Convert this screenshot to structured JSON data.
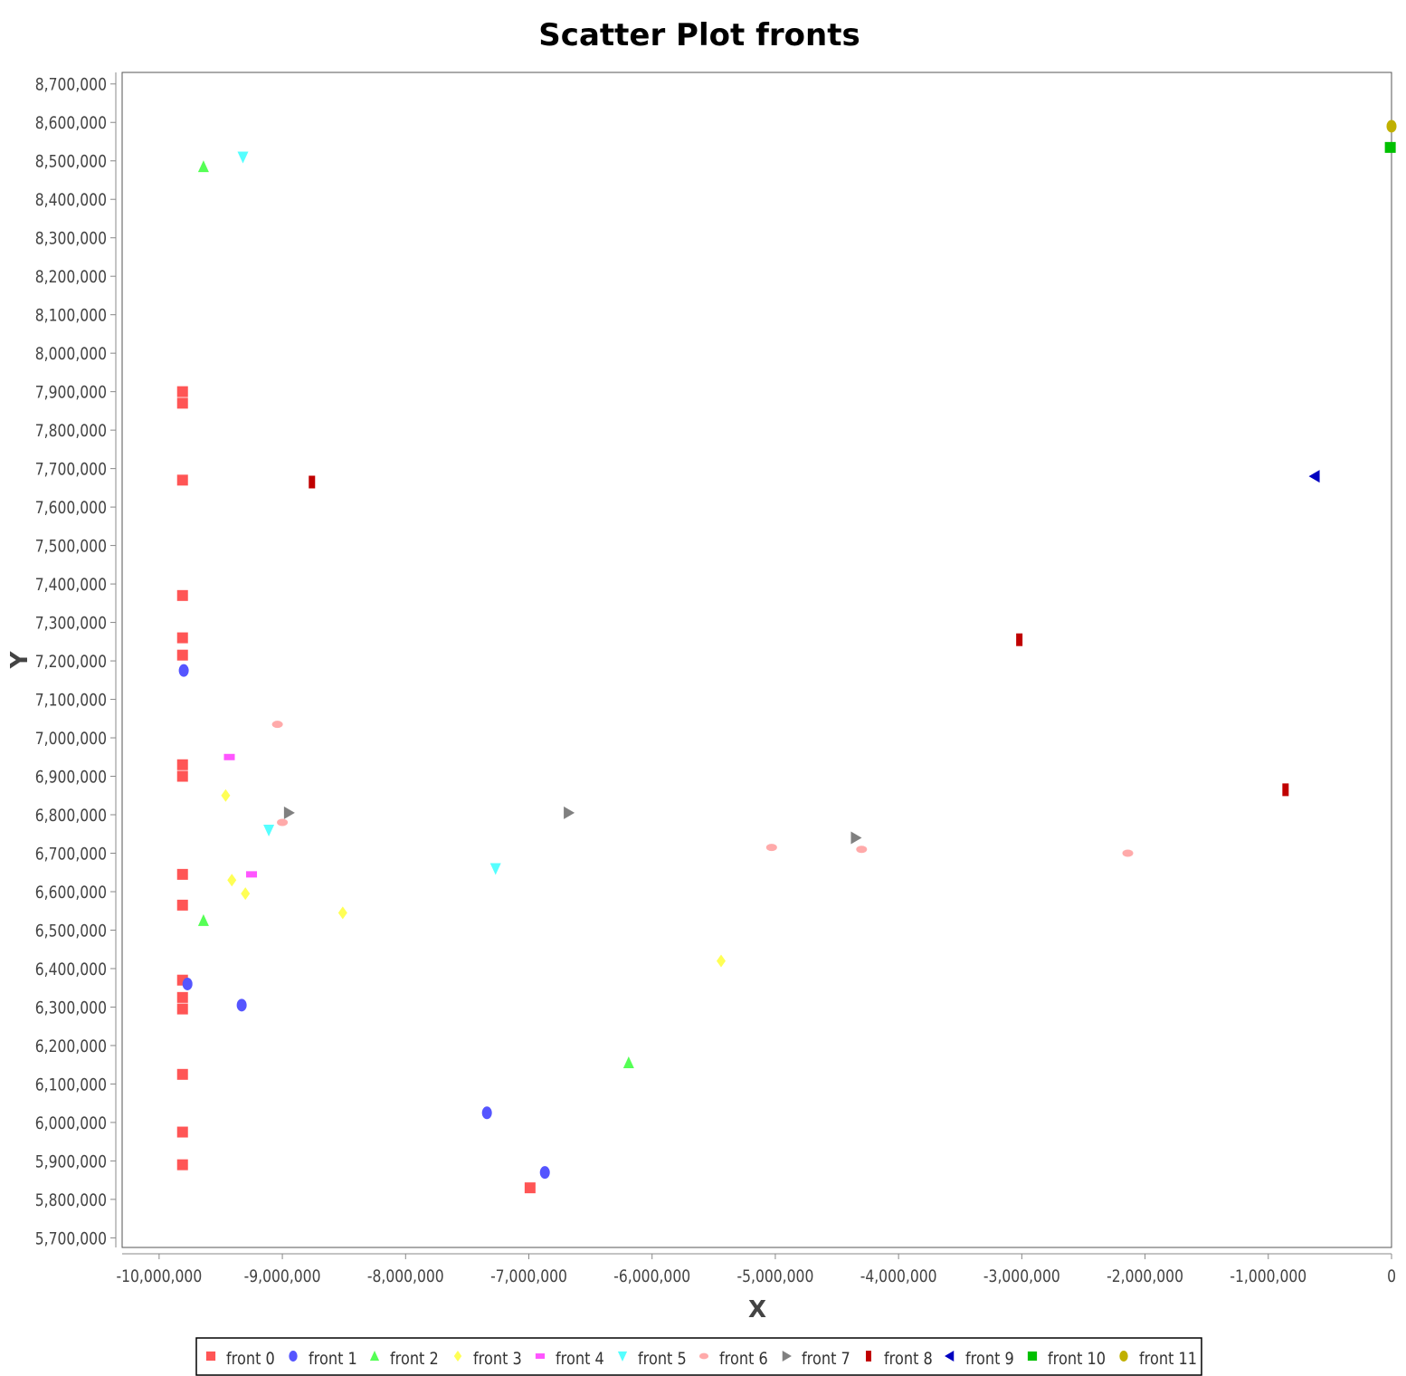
{
  "chart_data": {
    "type": "scatter",
    "title": "Scatter Plot fronts",
    "xlabel": "X",
    "ylabel": "Y",
    "xlim": [
      -10300000,
      0
    ],
    "ylim": [
      5675000,
      8730000
    ],
    "x_ticks": [
      -10000000,
      -9000000,
      -8000000,
      -7000000,
      -6000000,
      -5000000,
      -4000000,
      -3000000,
      -2000000,
      -1000000,
      0
    ],
    "x_tick_labels": [
      "-10,000,000",
      "-9,000,000",
      "-8,000,000",
      "-7,000,000",
      "-6,000,000",
      "-5,000,000",
      "-4,000,000",
      "-3,000,000",
      "-2,000,000",
      "-1,000,000",
      "0"
    ],
    "y_ticks": [
      5700000,
      5800000,
      5900000,
      6000000,
      6100000,
      6200000,
      6300000,
      6400000,
      6500000,
      6600000,
      6700000,
      6800000,
      6900000,
      7000000,
      7100000,
      7200000,
      7300000,
      7400000,
      7500000,
      7600000,
      7700000,
      7800000,
      7900000,
      8000000,
      8100000,
      8200000,
      8300000,
      8400000,
      8500000,
      8600000,
      8700000
    ],
    "y_tick_labels": [
      "5,700,000",
      "5,800,000",
      "5,900,000",
      "6,000,000",
      "6,100,000",
      "6,200,000",
      "6,300,000",
      "6,400,000",
      "6,500,000",
      "6,600,000",
      "6,700,000",
      "6,800,000",
      "6,900,000",
      "7,000,000",
      "7,100,000",
      "7,200,000",
      "7,300,000",
      "7,400,000",
      "7,500,000",
      "7,600,000",
      "7,700,000",
      "7,800,000",
      "7,900,000",
      "8,000,000",
      "8,100,000",
      "8,200,000",
      "8,300,000",
      "8,400,000",
      "8,500,000",
      "8,600,000",
      "8,700,000"
    ],
    "grid": false,
    "legend_position": "bottom",
    "series": [
      {
        "name": "front 0",
        "color": "#ff5555",
        "marker": "square",
        "points": [
          [
            -9810000,
            7900000
          ],
          [
            -9810000,
            7870000
          ],
          [
            -9810000,
            7670000
          ],
          [
            -9810000,
            7370000
          ],
          [
            -9810000,
            7260000
          ],
          [
            -9810000,
            7215000
          ],
          [
            -9810000,
            6930000
          ],
          [
            -9810000,
            6900000
          ],
          [
            -9810000,
            6645000
          ],
          [
            -9810000,
            6565000
          ],
          [
            -9810000,
            6370000
          ],
          [
            -9810000,
            6325000
          ],
          [
            -9810000,
            6295000
          ],
          [
            -9810000,
            6125000
          ],
          [
            -9810000,
            5975000
          ],
          [
            -9810000,
            5890000
          ],
          [
            -6990000,
            5830000
          ]
        ]
      },
      {
        "name": "front 1",
        "color": "#5555ff",
        "marker": "circle",
        "points": [
          [
            -9800000,
            7175000
          ],
          [
            -9770000,
            6360000
          ],
          [
            -9330000,
            6305000
          ],
          [
            -7340000,
            6025000
          ],
          [
            -6870000,
            5870000
          ]
        ]
      },
      {
        "name": "front 2",
        "color": "#55ff55",
        "marker": "triangle-up",
        "points": [
          [
            -9640000,
            8485000
          ],
          [
            -9640000,
            6525000
          ],
          [
            -6190000,
            6155000
          ]
        ]
      },
      {
        "name": "front 3",
        "color": "#ffff55",
        "marker": "diamond",
        "points": [
          [
            -9460000,
            6850000
          ],
          [
            -9410000,
            6630000
          ],
          [
            -9300000,
            6595000
          ],
          [
            -8510000,
            6545000
          ],
          [
            -5440000,
            6420000
          ]
        ]
      },
      {
        "name": "front 4",
        "color": "#ff55ff",
        "marker": "rect-h",
        "points": [
          [
            -9430000,
            6950000
          ],
          [
            -9250000,
            6645000
          ]
        ]
      },
      {
        "name": "front 5",
        "color": "#55ffff",
        "marker": "triangle-down",
        "points": [
          [
            -9320000,
            8510000
          ],
          [
            -9110000,
            6760000
          ],
          [
            -7270000,
            6660000
          ]
        ]
      },
      {
        "name": "front 6",
        "color": "#ffaaaa",
        "marker": "ellipse-h",
        "points": [
          [
            -9040000,
            7035000
          ],
          [
            -9000000,
            6780000
          ],
          [
            -5030000,
            6715000
          ],
          [
            -4300000,
            6710000
          ],
          [
            -2140000,
            6700000
          ]
        ]
      },
      {
        "name": "front 7",
        "color": "#808080",
        "marker": "triangle-right",
        "points": [
          [
            -8950000,
            6805000
          ],
          [
            -6680000,
            6805000
          ],
          [
            -4350000,
            6740000
          ]
        ]
      },
      {
        "name": "front 8",
        "color": "#c00000",
        "marker": "rect-v",
        "points": [
          [
            -8760000,
            7665000
          ],
          [
            -3020000,
            7255000
          ],
          [
            -860000,
            6865000
          ]
        ]
      },
      {
        "name": "front 9",
        "color": "#0000c0",
        "marker": "triangle-left",
        "points": [
          [
            -620000,
            7680000
          ]
        ]
      },
      {
        "name": "front 10",
        "color": "#00c000",
        "marker": "square",
        "points": [
          [
            -10000,
            8535000
          ]
        ]
      },
      {
        "name": "front 11",
        "color": "#c0b000",
        "marker": "circle",
        "points": [
          [
            0,
            8590000
          ]
        ]
      }
    ]
  }
}
